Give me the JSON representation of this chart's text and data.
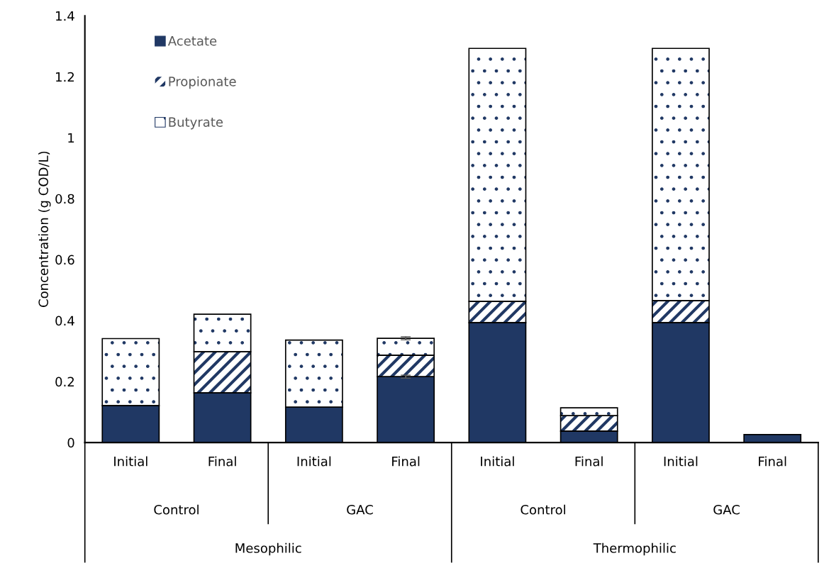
{
  "chart_data": {
    "type": "bar",
    "stacked": true,
    "categories": [
      "Initial",
      "Final",
      "Initial",
      "Final",
      "Initial",
      "Final",
      "Initial",
      "Final"
    ],
    "ylabel": "Concentration (g COD/L)",
    "ylim": [
      0,
      1.4
    ],
    "yticks": [
      0,
      0.2,
      0.4,
      0.6,
      0.8,
      1,
      1.2,
      1.4
    ],
    "grid": false,
    "legend": "top left",
    "annotations": [
      "Control",
      "GAC",
      "Control",
      "GAC",
      "Mesophilic",
      "Thermophilic"
    ],
    "series": [
      {
        "name": "Acetate",
        "color": "#203864",
        "values": [
          0.121,
          0.163,
          0.116,
          0.216,
          0.393,
          0.037,
          0.393,
          0.026
        ],
        "errors": [
          null,
          null,
          null,
          0.005,
          null,
          null,
          null,
          null
        ]
      },
      {
        "name": "Propionate",
        "color": "#203864",
        "values": [
          null,
          0.135,
          null,
          0.07,
          0.07,
          0.051,
          0.072,
          null
        ]
      },
      {
        "name": "Butyrate",
        "color": "#ffffff",
        "values": [
          0.22,
          0.123,
          0.22,
          0.056,
          0.83,
          0.026,
          0.828,
          null
        ],
        "errors": [
          null,
          null,
          null,
          0.005,
          null,
          null,
          null,
          null
        ]
      }
    ]
  }
}
